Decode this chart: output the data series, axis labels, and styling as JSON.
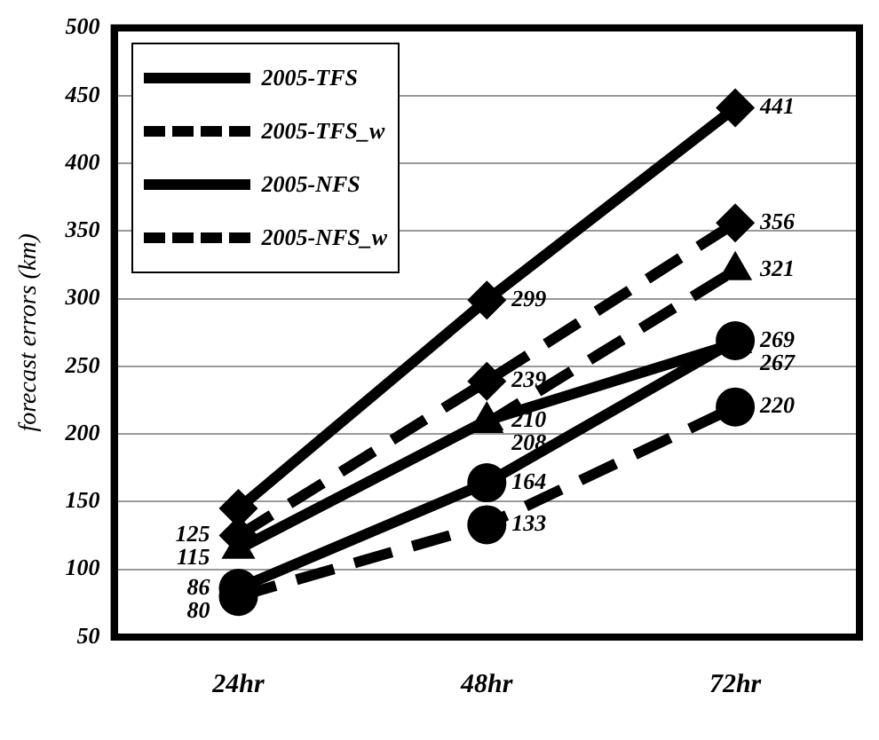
{
  "chart_data": {
    "type": "line",
    "ylabel": "forecast errors (km)",
    "categories": [
      "24hr",
      "48hr",
      "72hr"
    ],
    "series": [
      {
        "name": "2005-TFS",
        "color": "#000000",
        "marker": "diamond",
        "line_style": "solid",
        "values": [
          145,
          299,
          441
        ],
        "value_labels": [
          null,
          "299",
          "441"
        ]
      },
      {
        "name": "2005-TFS_w",
        "color": "#000000",
        "marker": "diamond",
        "line_style": "dashed",
        "values": [
          125,
          239,
          356
        ],
        "value_labels": [
          "125",
          "239",
          "356"
        ]
      },
      {
        "name": "2005-NFS",
        "color": "#000000",
        "marker": "triangle",
        "line_style": "solid",
        "values": [
          115,
          210,
          267
        ],
        "value_labels": [
          "115",
          "210",
          "267"
        ]
      },
      {
        "name": "2005-NFS_w",
        "color": "#000000",
        "marker": "triangle",
        "line_style": "dashed",
        "values": [
          null,
          208,
          321
        ],
        "value_labels": [
          null,
          "208",
          "321"
        ]
      },
      {
        "color": "#000000",
        "marker": "circle",
        "line_style": "solid",
        "values": [
          86,
          164,
          269
        ],
        "value_labels": [
          "86",
          "164",
          "269"
        ]
      },
      {
        "color": "#000000",
        "marker": "circle",
        "line_style": "dashed",
        "values": [
          80,
          133,
          220
        ],
        "value_labels": [
          "80",
          "133",
          "220"
        ]
      }
    ],
    "ylim": [
      50,
      500
    ],
    "yticks": [
      50,
      100,
      150,
      200,
      250,
      300,
      350,
      400,
      450,
      500
    ],
    "grid": "y",
    "legend": "top left"
  }
}
